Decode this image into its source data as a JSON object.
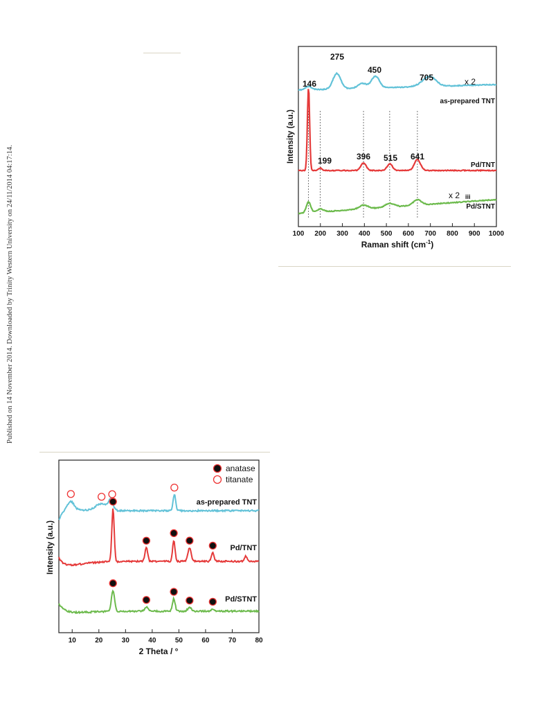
{
  "sidebar_note": "Published on 14 November 2014. Downloaded by Trinity Western University on 24/11/2014 04:17:14.",
  "raman": {
    "xlabel": "Raman shift (cm",
    "xlabel_sup": "-1",
    "xlabel_end": ")",
    "ylabel": "Intensity (a.u.)",
    "xticks": [
      "100",
      "200",
      "300",
      "400",
      "500",
      "600",
      "700",
      "800",
      "900",
      "1000"
    ],
    "series_labels": [
      "as-prepared TNT",
      "Pd/TNT",
      "Pd/STNT"
    ],
    "scale_labels": [
      "x 2",
      "x 2"
    ],
    "roman_label": "iii",
    "peak_labels": [
      "275",
      "450",
      "705",
      "146",
      "199",
      "396",
      "515",
      "641"
    ]
  },
  "xrd": {
    "xlabel": "2 Theta / °",
    "ylabel": "Intensity (a.u.)",
    "xticks": [
      "10",
      "20",
      "30",
      "40",
      "50",
      "60",
      "70",
      "80"
    ],
    "legend": [
      "anatase",
      "titanate"
    ],
    "series_labels": [
      "as-prepared TNT",
      "Pd/TNT",
      "Pd/STNT"
    ]
  },
  "chart_data": [
    {
      "type": "line",
      "xlabel": "Raman shift (cm-1)",
      "ylabel": "Intensity (a.u.)",
      "xlim": [
        100,
        1000
      ],
      "colors": [
        "#62c2d8",
        "#e53a3a",
        "#6cba4c"
      ],
      "series": [
        {
          "name": "as-prepared TNT",
          "scale": "x 2",
          "peaks": [
            {
              "x": 146,
              "h": 0.3,
              "w": 14
            },
            {
              "x": 275,
              "h": 1.4,
              "w": 18
            },
            {
              "x": 390,
              "h": 0.45,
              "w": 20
            },
            {
              "x": 450,
              "h": 1.05,
              "w": 18
            },
            {
              "x": 680,
              "h": 0.45,
              "w": 30
            },
            {
              "x": 705,
              "h": 0.55,
              "w": 25
            }
          ],
          "peak_labels": [
            275,
            450,
            705
          ]
        },
        {
          "name": "Pd/TNT",
          "peaks": [
            {
              "x": 146,
              "h": 10,
              "w": 5
            },
            {
              "x": 199,
              "h": 0.3,
              "w": 8
            },
            {
              "x": 396,
              "h": 0.9,
              "w": 12
            },
            {
              "x": 515,
              "h": 0.8,
              "w": 12
            },
            {
              "x": 641,
              "h": 1.3,
              "w": 14
            }
          ],
          "peak_labels": [
            146,
            199,
            396,
            515,
            641
          ]
        },
        {
          "name": "Pd/STNT",
          "scale": "x 2",
          "peaks": [
            {
              "x": 146,
              "h": 1.3,
              "w": 10
            },
            {
              "x": 200,
              "h": 0.35,
              "w": 14
            },
            {
              "x": 396,
              "h": 0.45,
              "w": 20
            },
            {
              "x": 515,
              "h": 0.45,
              "w": 20
            },
            {
              "x": 641,
              "h": 0.65,
              "w": 18
            }
          ],
          "peak_labels": []
        }
      ],
      "reference_lines_x": [
        146,
        199,
        396,
        515,
        641
      ]
    },
    {
      "type": "line",
      "xlabel": "2 Theta / °",
      "ylabel": "Intensity (a.u.)",
      "xlim": [
        5,
        80
      ],
      "colors": [
        "#62c2d8",
        "#e53a3a",
        "#6cba4c"
      ],
      "legend": [
        "anatase",
        "titanate"
      ],
      "series": [
        {
          "name": "as-prepared TNT",
          "peaks": [
            {
              "x": 9.5,
              "h": 1.3,
              "w": 1.2
            },
            {
              "x": 21,
              "h": 1.1,
              "w": 2.2
            },
            {
              "x": 24.5,
              "h": 1.6,
              "w": 0.8
            },
            {
              "x": 48.3,
              "h": 2.6,
              "w": 0.5
            }
          ],
          "markers": {
            "titanate": [
              9.5,
              21,
              25,
              48.3
            ]
          }
        },
        {
          "name": "Pd/TNT",
          "peaks": [
            {
              "x": 25.3,
              "h": 8.5,
              "w": 0.45
            },
            {
              "x": 37.8,
              "h": 2.2,
              "w": 0.5
            },
            {
              "x": 48.1,
              "h": 3.4,
              "w": 0.45
            },
            {
              "x": 54,
              "h": 2.2,
              "w": 0.6
            },
            {
              "x": 62.7,
              "h": 1.4,
              "w": 0.5
            },
            {
              "x": 75,
              "h": 0.8,
              "w": 0.5
            }
          ],
          "markers": {
            "anatase": [
              25.3,
              37.8,
              48.1,
              54,
              62.7
            ]
          }
        },
        {
          "name": "Pd/STNT",
          "peaks": [
            {
              "x": 25.3,
              "h": 3.4,
              "w": 0.6
            },
            {
              "x": 37.8,
              "h": 0.7,
              "w": 0.6
            },
            {
              "x": 48.1,
              "h": 2.0,
              "w": 0.5
            },
            {
              "x": 54,
              "h": 0.6,
              "w": 0.7
            },
            {
              "x": 62.7,
              "h": 0.4,
              "w": 0.6
            }
          ],
          "markers": {
            "anatase": [
              25.3,
              37.8,
              48.1,
              54,
              62.7
            ]
          }
        }
      ]
    }
  ]
}
